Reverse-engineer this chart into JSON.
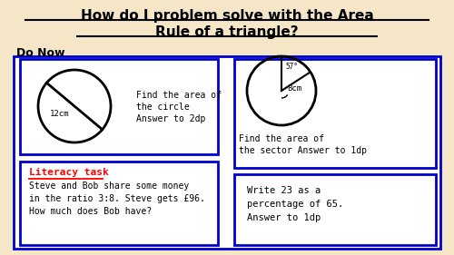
{
  "background_color": "#f5e6c8",
  "title_line1": "How do I problem solve with the Area",
  "title_line2": "Rule of a triangle?",
  "subtitle": "Do Now",
  "box1": {
    "circle_radius_label": "12cm",
    "text1": "Find the area of",
    "text2": "the circle",
    "text3": "Answer to 2dp"
  },
  "box2": {
    "angle_label": "57°",
    "radius_label": "8cm",
    "text1": "Find the area of",
    "text2": "the sector Answer to 1dp"
  },
  "box3": {
    "title": "Literacy task",
    "text1": "Steve and Bob share some money",
    "text2": "in the ratio 3:8. Steve gets £96.",
    "text3": "How much does Bob have?"
  },
  "box4": {
    "text1": "Write 23 as a",
    "text2": "percentage of 65.",
    "text3": "Answer to 1dp"
  },
  "border_color": "#0000cc",
  "title_color": "#000000",
  "literacy_color": "#ff0000"
}
